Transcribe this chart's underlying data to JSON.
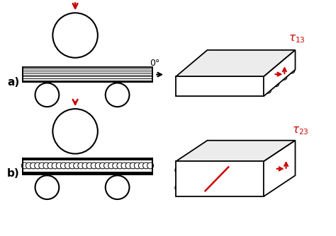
{
  "bg_color": "#ffffff",
  "label_a": "a)",
  "label_b": "b)",
  "arrow_color": "#cc0000",
  "line_color": "#000000",
  "zero_deg_label": "0°"
}
